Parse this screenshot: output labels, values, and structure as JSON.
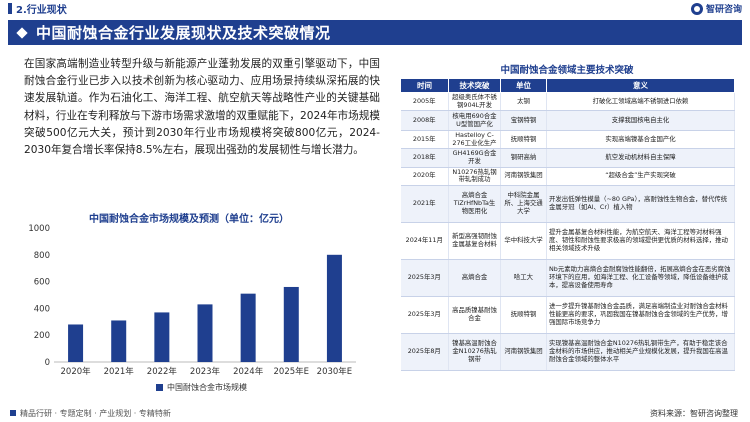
{
  "header": {
    "section": "2.行业现状",
    "brand": "智研咨询",
    "title": "中国耐蚀合金行业发展现状及技术突破情况"
  },
  "intro": "在国家高端制造业转型升级与新能源产业蓬勃发展的双重引擎驱动下，中国耐蚀合金行业已步入以技术创新为核心驱动力、应用场景持续纵深拓展的快速发展轨道。作为石油化工、海洋工程、航空航天等战略性产业的关键基础材料，行业在专利释放与下游市场需求激增的双重赋能下，2024年市场规模突破500亿元大关，预计到2030年行业市场规模将突破800亿元，2024-2030年复合增长率保持8.5%左右，展现出强劲的发展韧性与增长潜力。",
  "chart_data": {
    "type": "bar",
    "title": "中国耐蚀合金市场规模及预测（单位：亿元）",
    "categories": [
      "2020年",
      "2021年",
      "2022年",
      "2023年",
      "2024年",
      "2025年E",
      "2030年E"
    ],
    "series": [
      {
        "name": "中国耐蚀合金市场规模",
        "values": [
          280,
          310,
          370,
          430,
          510,
          560,
          800
        ]
      }
    ],
    "yticks": [
      0,
      200,
      400,
      600,
      800,
      1000
    ],
    "ylim": [
      0,
      1000
    ],
    "color": "#1f3f8f",
    "legend": "bottom"
  },
  "table": {
    "title": "中国耐蚀合金领域主要技术突破",
    "headers": [
      "时间",
      "技术突破",
      "单位",
      "意义"
    ],
    "rows": [
      [
        "2005年",
        "超级奥氏体不锈钢904L开发",
        "太钢",
        "打破化工领域高端不锈钢进口依赖"
      ],
      [
        "2008年",
        "核电用690合金U型管国产化",
        "宝钢特钢",
        "支撑我国核电自主化"
      ],
      [
        "2015年",
        "Hastelloy C-276工业化生产",
        "抚顺特钢",
        "实现高端镍基合金国产化"
      ],
      [
        "2018年",
        "GH4169G合金开发",
        "钢研高纳",
        "航空发动机材料自主保障"
      ],
      [
        "2020年",
        "N10276热轧钢带轧制成功",
        "河南钢铁集团",
        "“超级合金”生产实现突破"
      ],
      [
        "2021年",
        "高熵合金TiZrHfNbTa生物医用化",
        "中科院金属所、上海交通大学",
        "开发出低弹性模量（~80 GPa），高耐蚀性生物合金，替代传统金属牙冠（如Al、Cr）植入物"
      ],
      [
        "2024年11月",
        "新型高强韧耐蚀金属基复合材料",
        "华中科技大学",
        "提升金属基复合材料性能，为航空航天、海洋工程等对材料强度、韧性和耐蚀性要求极高的领域提供更优质的材料选择，推动相关领域技术升级"
      ],
      [
        "2025年3月",
        "高熵合金",
        "哈工大",
        "Nb元素助力高熵合金耐腐蚀性能翻倍，拓展高熵合金在恶劣腐蚀环境下的应用，如海洋工程、化工设备等领域，降低设备维护成本，提高设备使用寿命"
      ],
      [
        "2025年3月",
        "高品质镍基耐蚀合金",
        "抚顺特钢",
        "进一步提升镍基耐蚀合金品质，满足高端制造业对耐蚀合金材料性能更高的要求，巩固我国在镍基耐蚀合金领域的生产优势，增强国际市场竞争力"
      ],
      [
        "2025年8月",
        "镍基高温耐蚀合金N10276热轧钢带",
        "河南钢铁集团",
        "实现镍基高温耐蚀合金N10276热轧钢带生产，有助于稳定该合金材料的市场供应，推动相关产业规模化发展，提升我国在高温耐蚀合金领域的整体水平"
      ]
    ]
  },
  "footer": {
    "left": "精品行研 · 专题定制 · 产业规划 · 专精特新",
    "right": "资料来源：智研咨询整理"
  },
  "watermark": "智研咨询"
}
